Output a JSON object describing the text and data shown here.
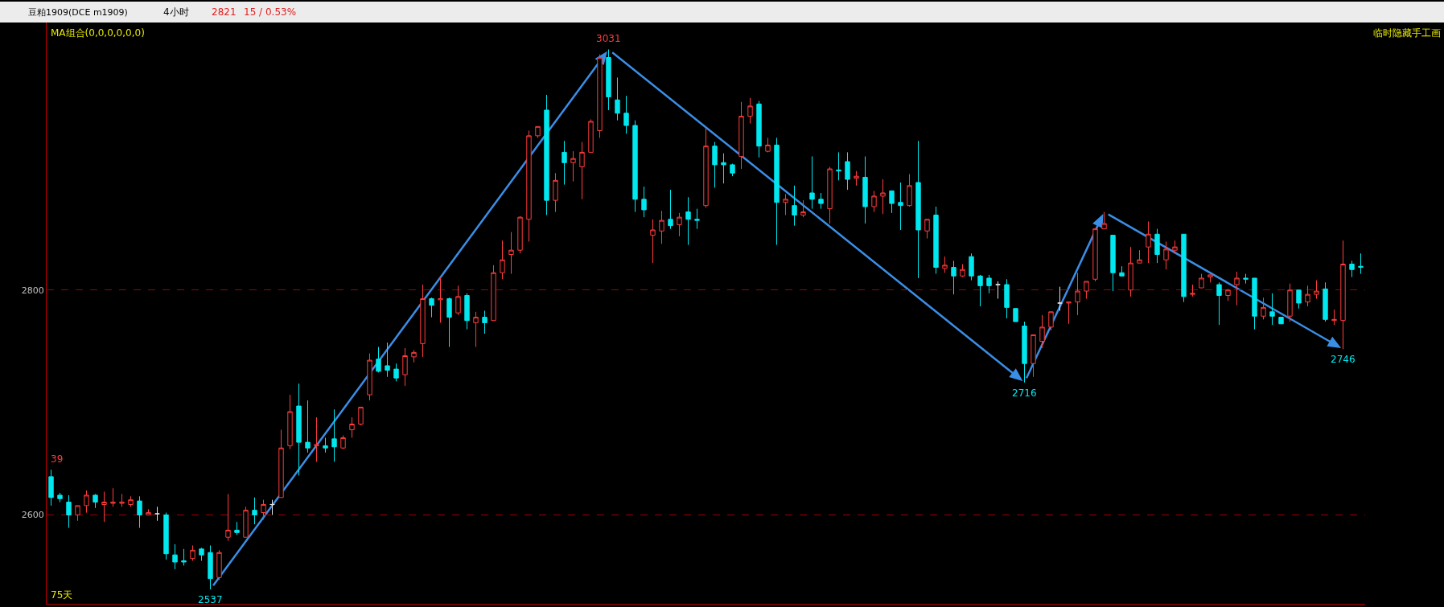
{
  "chart_data": {
    "type": "candlestick",
    "title": "豆粕1909(DCE m1909)",
    "annotations": [
      "4小时",
      "2821",
      "15 / 0.53%",
      "MA组合(0,0,0,0,0,0)",
      "临时隐藏手工画",
      "75天",
      "39",
      {
        "text": "2537",
        "y": 2537
      },
      {
        "text": "3031",
        "y": 3031
      },
      {
        "text": "2716",
        "y": 2716
      },
      {
        "text": "2746",
        "y": 2746
      }
    ],
    "categories": [
      null,
      null,
      null,
      null,
      null,
      null,
      null,
      null,
      null,
      null,
      null,
      null,
      null,
      null,
      null,
      null,
      null,
      null,
      null,
      null,
      null,
      null,
      null,
      null,
      null,
      null,
      null,
      null,
      null,
      null,
      null,
      null,
      null,
      null,
      null,
      null,
      null,
      null,
      null,
      null,
      null,
      null,
      null,
      null,
      null,
      null,
      null,
      null,
      null,
      null,
      null,
      null,
      null,
      null,
      null,
      null,
      null,
      null,
      null,
      null,
      null,
      null,
      null,
      null,
      null,
      null,
      null,
      null,
      null,
      null,
      null,
      null,
      null,
      null,
      null,
      null,
      null,
      null,
      null,
      null,
      null,
      null,
      null,
      null,
      null,
      null,
      null,
      null,
      null,
      null,
      null,
      null,
      null,
      null,
      null,
      null,
      null,
      null,
      null,
      null,
      null,
      null,
      null,
      null,
      null,
      null,
      null,
      null,
      null,
      null,
      null,
      null,
      null,
      null,
      null,
      null,
      null,
      null,
      null,
      null,
      null,
      null,
      null,
      null,
      null,
      null,
      null,
      null,
      null,
      null,
      null,
      null,
      null,
      null,
      null,
      null,
      null,
      null,
      null,
      null,
      null,
      null,
      null,
      null,
      null,
      null,
      null,
      null,
      null
    ],
    "colors": [
      "#00e8ef",
      "#00e8ef",
      "#00e8ef",
      "#ff3c3c",
      "#ff3c3c",
      "#00e8ef",
      "#ff3c3c",
      "#ff3c3c",
      "#ff3c3c",
      "#ff3c3c",
      "#00e8ef",
      "#ff3c3c",
      "#e0e0e0",
      "#00e8ef",
      "#00e8ef",
      "#00e8ef",
      "#ff3c3c",
      "#00e8ef",
      "#00e8ef",
      "#ff3c3c",
      "#ff3c3c",
      "#00e8ef",
      "#ff3c3c",
      "#00e8ef",
      "#ff3c3c",
      "#e0e0e0",
      "#ff3c3c",
      "#ff3c3c",
      "#00e8ef",
      "#00e8ef",
      "#ff3c3c",
      "#00e8ef",
      "#00e8ef",
      "#ff3c3c",
      "#ff3c3c",
      "#ff3c3c",
      "#ff3c3c",
      "#00e8ef",
      "#00e8ef",
      "#00e8ef",
      "#ff3c3c",
      "#ff3c3c",
      "#ff3c3c",
      "#00e8ef",
      "#ff3c3c",
      "#00e8ef",
      "#ff3c3c",
      "#00e8ef",
      "#ff3c3c",
      "#00e8ef",
      "#ff3c3c",
      "#ff3c3c",
      "#ff3c3c",
      "#ff3c3c",
      "#ff3c3c",
      "#ff3c3c",
      "#00e8ef",
      "#ff3c3c",
      "#00e8ef",
      "#ff3c3c",
      "#ff3c3c",
      "#ff3c3c",
      "#ff3c3c",
      "#00e8ef",
      "#00e8ef",
      "#00e8ef",
      "#00e8ef",
      "#00e8ef",
      "#ff3c3c",
      "#ff3c3c",
      "#00e8ef",
      "#ff3c3c",
      "#00e8ef",
      "#00e8ef",
      "#ff3c3c",
      "#00e8ef",
      "#00e8ef",
      "#00e8ef",
      "#ff3c3c",
      "#ff3c3c",
      "#00e8ef",
      "#ff3c3c",
      "#00e8ef",
      "#ff3c3c",
      "#00e8ef",
      "#ff3c3c",
      "#00e8ef",
      "#00e8ef",
      "#ff3c3c",
      "#00e8ef",
      "#00e8ef",
      "#ff3c3c",
      "#00e8ef",
      "#ff3c3c",
      "#ff3c3c",
      "#00e8ef",
      "#00e8ef",
      "#ff3c3c",
      "#00e8ef",
      "#ff3c3c",
      "#00e8ef",
      "#ff3c3c",
      "#00e8ef",
      "#ff3c3c",
      "#00e8ef",
      "#00e8ef",
      "#00e8ef",
      "#e0e0e0",
      "#00e8ef",
      "#00e8ef",
      "#00e8ef",
      "#ff3c3c",
      "#ff3c3c",
      "#ff3c3c",
      "#e0e0e0",
      "#ff3c3c",
      "#ff3c3c",
      "#ff3c3c",
      "#ff3c3c",
      "#ff3c3c",
      "#00e8ef",
      "#00e8ef",
      "#ff3c3c",
      "#ff3c3c",
      "#ff3c3c",
      "#00e8ef",
      "#ff3c3c",
      "#ff3c3c",
      "#00e8ef",
      "#ff3c3c",
      "#ff3c3c",
      "#ff3c3c",
      "#00e8ef",
      "#ff3c3c",
      "#ff3c3c",
      "#00e8ef",
      "#00e8ef",
      "#ff3c3c",
      "#00e8ef",
      "#00e8ef",
      "#ff3c3c",
      "#00e8ef",
      "#ff3c3c",
      "#ff3c3c",
      "#00e8ef",
      "#ff3c3c",
      "#ff3c3c",
      "#00e8ef",
      "#00e8ef"
    ],
    "log": true,
    "ylim": [
      2525,
      3058
    ],
    "yticks": [
      2600,
      2800
    ],
    "grid": "y",
    "tick_labels": "y",
    "ohlc": [
      [
        2633,
        2639,
        2608,
        2615
      ],
      [
        2617,
        2619,
        2611,
        2614
      ],
      [
        2611,
        2617,
        2589,
        2600
      ],
      [
        2600,
        2608,
        2595,
        2608
      ],
      [
        2608,
        2621,
        2602,
        2617
      ],
      [
        2617,
        2618,
        2606,
        2611
      ],
      [
        2609,
        2620,
        2594,
        2611
      ],
      [
        2610,
        2623,
        2607,
        2611
      ],
      [
        2610,
        2618,
        2607,
        2611
      ],
      [
        2609,
        2616,
        2607,
        2613
      ],
      [
        2612,
        2616,
        2589,
        2600
      ],
      [
        2600,
        2605,
        2600,
        2602
      ],
      [
        2601,
        2607,
        2595,
        2601
      ],
      [
        2600,
        2602,
        2562,
        2567
      ],
      [
        2566,
        2575,
        2554,
        2560
      ],
      [
        2561,
        2571,
        2557,
        2560
      ],
      [
        2563,
        2574,
        2561,
        2570
      ],
      [
        2571,
        2572,
        2561,
        2566
      ],
      [
        2568,
        2574,
        2537,
        2546
      ],
      [
        2547,
        2570,
        2545,
        2568
      ],
      [
        2581,
        2618,
        2578,
        2587
      ],
      [
        2587,
        2594,
        2583,
        2585
      ],
      [
        2581,
        2607,
        2581,
        2604
      ],
      [
        2604,
        2615,
        2592,
        2600
      ],
      [
        2602,
        2613,
        2596,
        2609
      ],
      [
        2609,
        2613,
        2600,
        2609
      ],
      [
        2615,
        2674,
        2615,
        2658
      ],
      [
        2660,
        2705,
        2657,
        2690
      ],
      [
        2695,
        2715,
        2634,
        2663
      ],
      [
        2663,
        2700,
        2654,
        2658
      ],
      [
        2660,
        2685,
        2646,
        2661
      ],
      [
        2660,
        2667,
        2654,
        2658
      ],
      [
        2666,
        2692,
        2646,
        2659
      ],
      [
        2658,
        2669,
        2657,
        2667
      ],
      [
        2674,
        2685,
        2667,
        2679
      ],
      [
        2679,
        2694,
        2678,
        2694
      ],
      [
        2705,
        2742,
        2700,
        2736
      ],
      [
        2737,
        2748,
        2725,
        2726
      ],
      [
        2731,
        2752,
        2721,
        2727
      ],
      [
        2728,
        2733,
        2717,
        2720
      ],
      [
        2723,
        2747,
        2713,
        2740
      ],
      [
        2739,
        2745,
        2734,
        2743
      ],
      [
        2751,
        2805,
        2739,
        2792
      ],
      [
        2792,
        2793,
        2775,
        2786
      ],
      [
        2791,
        2812,
        2770,
        2792
      ],
      [
        2792,
        2793,
        2748,
        2775
      ],
      [
        2779,
        2804,
        2777,
        2794
      ],
      [
        2795,
        2797,
        2764,
        2772
      ],
      [
        2770,
        2780,
        2748,
        2775
      ],
      [
        2775,
        2781,
        2760,
        2770
      ],
      [
        2772,
        2823,
        2772,
        2816
      ],
      [
        2816,
        2846,
        2810,
        2828
      ],
      [
        2833,
        2854,
        2815,
        2837
      ],
      [
        2837,
        2869,
        2834,
        2868
      ],
      [
        2866,
        2951,
        2845,
        2946
      ],
      [
        2946,
        2955,
        2944,
        2955
      ],
      [
        2971,
        2986,
        2870,
        2884
      ],
      [
        2884,
        2910,
        2873,
        2903
      ],
      [
        2930,
        2941,
        2899,
        2920
      ],
      [
        2920,
        2931,
        2902,
        2924
      ],
      [
        2916,
        2940,
        2885,
        2930
      ],
      [
        2930,
        2962,
        2930,
        2960
      ],
      [
        2951,
        3026,
        2944,
        3023
      ],
      [
        3023,
        3031,
        2971,
        2984
      ],
      [
        2981,
        3003,
        2961,
        2968
      ],
      [
        2968,
        2985,
        2948,
        2956
      ],
      [
        2956,
        2961,
        2873,
        2885
      ],
      [
        2885,
        2897,
        2868,
        2875
      ],
      [
        2851,
        2866,
        2825,
        2856
      ],
      [
        2855,
        2874,
        2843,
        2865
      ],
      [
        2866,
        2894,
        2857,
        2860
      ],
      [
        2861,
        2872,
        2850,
        2868
      ],
      [
        2873,
        2887,
        2842,
        2866
      ],
      [
        2866,
        2876,
        2857,
        2865
      ],
      [
        2879,
        2953,
        2877,
        2936
      ],
      [
        2936,
        2940,
        2896,
        2918
      ],
      [
        2920,
        2929,
        2900,
        2918
      ],
      [
        2918,
        2919,
        2907,
        2910
      ],
      [
        2926,
        2979,
        2914,
        2965
      ],
      [
        2965,
        2983,
        2958,
        2975
      ],
      [
        2977,
        2980,
        2925,
        2936
      ],
      [
        2931,
        2944,
        2930,
        2937
      ],
      [
        2937,
        2944,
        2842,
        2882
      ],
      [
        2882,
        2890,
        2870,
        2885
      ],
      [
        2879,
        2898,
        2860,
        2870
      ],
      [
        2870,
        2884,
        2868,
        2873
      ],
      [
        2891,
        2926,
        2876,
        2885
      ],
      [
        2885,
        2891,
        2876,
        2881
      ],
      [
        2876,
        2916,
        2862,
        2914
      ],
      [
        2913,
        2930,
        2903,
        2912
      ],
      [
        2921,
        2930,
        2894,
        2904
      ],
      [
        2905,
        2912,
        2898,
        2907
      ],
      [
        2906,
        2926,
        2862,
        2878
      ],
      [
        2878,
        2893,
        2873,
        2888
      ],
      [
        2888,
        2904,
        2871,
        2891
      ],
      [
        2893,
        2893,
        2872,
        2881
      ],
      [
        2882,
        2901,
        2856,
        2879
      ],
      [
        2879,
        2909,
        2878,
        2898
      ],
      [
        2901,
        2941,
        2811,
        2856
      ],
      [
        2855,
        2866,
        2848,
        2866
      ],
      [
        2870,
        2878,
        2815,
        2821
      ],
      [
        2820,
        2831,
        2816,
        2823
      ],
      [
        2821,
        2827,
        2796,
        2813
      ],
      [
        2813,
        2824,
        2812,
        2819
      ],
      [
        2831,
        2834,
        2809,
        2813
      ],
      [
        2813,
        2814,
        2785,
        2804
      ],
      [
        2811,
        2814,
        2797,
        2804
      ],
      [
        2805,
        2808,
        2792,
        2805
      ],
      [
        2805,
        2810,
        2774,
        2784
      ],
      [
        2783,
        2783,
        2771,
        2771
      ],
      [
        2767,
        2771,
        2716,
        2733
      ],
      [
        2733,
        2759,
        2721,
        2759
      ],
      [
        2753,
        2777,
        2747,
        2766
      ],
      [
        2766,
        2780,
        2763,
        2780
      ],
      [
        2788,
        2803,
        2781,
        2788
      ],
      [
        2788,
        2789,
        2769,
        2789
      ],
      [
        2789,
        2816,
        2777,
        2799
      ],
      [
        2799,
        2808,
        2792,
        2808
      ],
      [
        2810,
        2857,
        2808,
        2857
      ],
      [
        2857,
        2873,
        2857,
        2862
      ],
      [
        2851,
        2851,
        2799,
        2816
      ],
      [
        2816,
        2822,
        2813,
        2813
      ],
      [
        2800,
        2840,
        2794,
        2825
      ],
      [
        2825,
        2837,
        2825,
        2828
      ],
      [
        2840,
        2864,
        2825,
        2852
      ],
      [
        2852,
        2857,
        2825,
        2833
      ],
      [
        2828,
        2845,
        2819,
        2838
      ],
      [
        2837,
        2846,
        2834,
        2840
      ],
      [
        2852,
        2852,
        2789,
        2794
      ],
      [
        2796,
        2805,
        2794,
        2797
      ],
      [
        2802,
        2815,
        2802,
        2811
      ],
      [
        2812,
        2814,
        2807,
        2814
      ],
      [
        2805,
        2807,
        2768,
        2795
      ],
      [
        2795,
        2801,
        2790,
        2800
      ],
      [
        2805,
        2817,
        2786,
        2811
      ],
      [
        2811,
        2815,
        2806,
        2810
      ],
      [
        2811,
        2811,
        2764,
        2776
      ],
      [
        2776,
        2793,
        2773,
        2784
      ],
      [
        2780,
        2797,
        2768,
        2776
      ],
      [
        2775,
        2775,
        2769,
        2769
      ],
      [
        2776,
        2806,
        2771,
        2800
      ],
      [
        2800,
        2800,
        2783,
        2788
      ],
      [
        2789,
        2804,
        2785,
        2796
      ],
      [
        2796,
        2809,
        2792,
        2799
      ],
      [
        2801,
        2807,
        2771,
        2773
      ],
      [
        2772,
        2782,
        2768,
        2773
      ],
      [
        2772,
        2846,
        2746,
        2824
      ],
      [
        2824,
        2827,
        2812,
        2819
      ],
      [
        2822,
        2834,
        2815,
        2821
      ]
    ]
  }
}
